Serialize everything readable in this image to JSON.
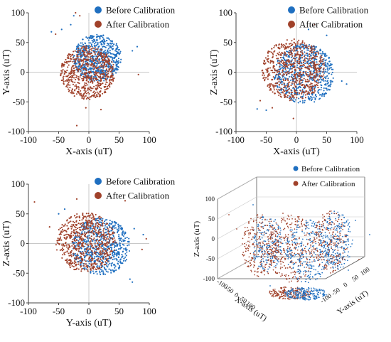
{
  "palette": {
    "before": "#1f6fc0",
    "after": "#a0412a",
    "grid": "#c8c8c8",
    "axis": "#444444"
  },
  "chart_data": [
    {
      "type": "scatter",
      "xlabel": "X-axis (uT)",
      "ylabel": "Y-axis (uT)",
      "xlim": [
        -100,
        100
      ],
      "ylim": [
        -100,
        100
      ],
      "xticks": [
        -100,
        -50,
        0,
        50,
        100
      ],
      "yticks": [
        -100,
        -50,
        0,
        50,
        100
      ],
      "grid": true,
      "legend_position": "top-right",
      "series": [
        {
          "name": "Before Calibration",
          "center": [
            14,
            24
          ],
          "radius": 40
        },
        {
          "name": "After Calibration",
          "center": [
            -2,
            -1
          ],
          "radius": 45
        }
      ],
      "outliers": [
        {
          "series": "before",
          "points": [
            [
              -62,
              68
            ],
            [
              -45,
              72
            ],
            [
              72,
              36
            ],
            [
              80,
              43
            ],
            [
              -25,
              95
            ],
            [
              -30,
              80
            ]
          ]
        },
        {
          "series": "after",
          "points": [
            [
              -15,
              95
            ],
            [
              -22,
              100
            ],
            [
              -55,
              64
            ],
            [
              82,
              -4
            ],
            [
              -20,
              -90
            ],
            [
              -5,
              -60
            ],
            [
              20,
              -63
            ]
          ]
        }
      ]
    },
    {
      "type": "scatter",
      "xlabel": "X-axis (uT)",
      "ylabel": "Z-axis (uT)",
      "xlim": [
        -100,
        100
      ],
      "ylim": [
        -100,
        100
      ],
      "xticks": [
        -100,
        -50,
        0,
        50,
        100
      ],
      "yticks": [
        -100,
        -50,
        0,
        50,
        100
      ],
      "grid": true,
      "legend_position": "top-right",
      "series": [
        {
          "name": "Before Calibration",
          "center": [
            13,
            -3
          ],
          "radius": 50
        },
        {
          "name": "After Calibration",
          "center": [
            -5,
            4
          ],
          "radius": 52
        }
      ],
      "outliers": [
        {
          "series": "before",
          "points": [
            [
              -50,
              -64
            ],
            [
              -65,
              -62
            ],
            [
              75,
              -15
            ],
            [
              83,
              -20
            ],
            [
              50,
              62
            ],
            [
              20,
              72
            ]
          ]
        },
        {
          "series": "after",
          "points": [
            [
              -10,
              75
            ],
            [
              -40,
              -60
            ],
            [
              -60,
              -48
            ],
            [
              30,
              80
            ],
            [
              -5,
              -78
            ]
          ]
        }
      ]
    },
    {
      "type": "scatter",
      "xlabel": "Y-axis (uT)",
      "ylabel": "Z-axis (uT)",
      "xlim": [
        -100,
        100
      ],
      "ylim": [
        -100,
        100
      ],
      "xticks": [
        -100,
        -50,
        0,
        50,
        100
      ],
      "yticks": [
        -100,
        -50,
        0,
        50,
        100
      ],
      "grid": true,
      "legend_position": "top-right",
      "series": [
        {
          "name": "Before Calibration",
          "center": [
            20,
            -5
          ],
          "radius": 48
        },
        {
          "name": "After Calibration",
          "center": [
            -5,
            2
          ],
          "radius": 50
        }
      ],
      "outliers": [
        {
          "series": "before",
          "points": [
            [
              -40,
              58
            ],
            [
              68,
              -60
            ],
            [
              72,
              -65
            ],
            [
              75,
              25
            ],
            [
              90,
              15
            ],
            [
              -50,
              50
            ]
          ]
        },
        {
          "series": "after",
          "points": [
            [
              -90,
              70
            ],
            [
              -65,
              28
            ],
            [
              -20,
              75
            ],
            [
              95,
              8
            ],
            [
              88,
              -10
            ],
            [
              60,
              72
            ]
          ]
        }
      ]
    },
    {
      "type": "scatter3d",
      "xlabel": "X-axis (uT)",
      "ylabel": "Y-axis (uT)",
      "zlabel": "Z-axis (uT)",
      "zlim": [
        -100,
        100
      ],
      "zticks": [
        100,
        50,
        0,
        -50,
        -100
      ],
      "xticks": [
        -100,
        -50,
        0,
        50,
        100
      ],
      "yticks": [
        -100,
        -50,
        0,
        50,
        100
      ],
      "legend_position": "top-right",
      "series": [
        {
          "name": "Before Calibration"
        },
        {
          "name": "After Calibration"
        }
      ]
    }
  ]
}
